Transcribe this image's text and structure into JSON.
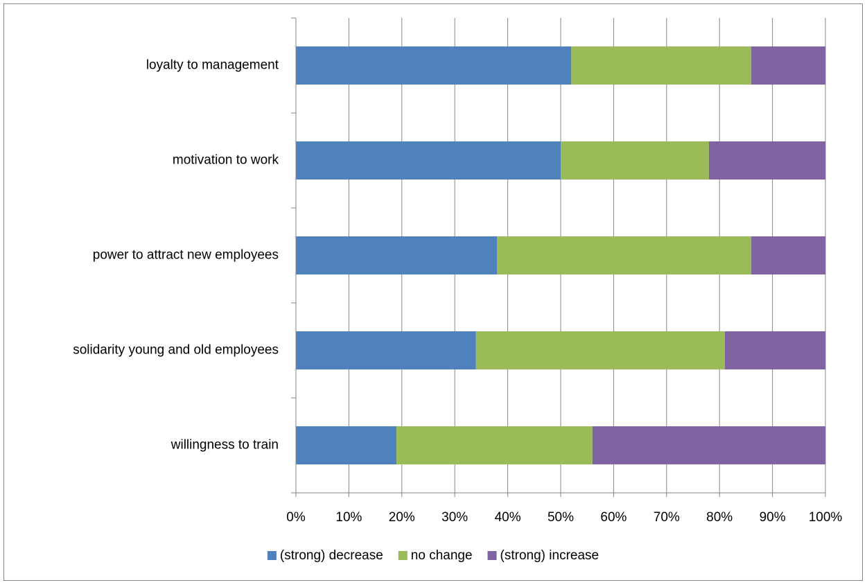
{
  "chart_data": {
    "type": "stacked-bar-horizontal",
    "categories": [
      "loyalty to management",
      "motivation to work",
      "power to attract new employees",
      "solidarity young and old employees",
      "willingness to train"
    ],
    "series": [
      {
        "name": "(strong) decrease",
        "color": "#4f81bd",
        "values": [
          52,
          50,
          38,
          34,
          19
        ]
      },
      {
        "name": "no change",
        "color": "#9bbb59",
        "values": [
          34,
          28,
          48,
          47,
          37
        ]
      },
      {
        "name": "(strong) increase",
        "color": "#8064a2",
        "values": [
          14,
          22,
          14,
          19,
          44
        ]
      }
    ],
    "xlim": [
      0,
      100
    ],
    "xticks": [
      {
        "value": 0,
        "label": "0%"
      },
      {
        "value": 10,
        "label": "10%"
      },
      {
        "value": 20,
        "label": "20%"
      },
      {
        "value": 30,
        "label": "30%"
      },
      {
        "value": 40,
        "label": "40%"
      },
      {
        "value": 50,
        "label": "50%"
      },
      {
        "value": 60,
        "label": "60%"
      },
      {
        "value": 70,
        "label": "70%"
      },
      {
        "value": 80,
        "label": "80%"
      },
      {
        "value": 90,
        "label": "90%"
      },
      {
        "value": 100,
        "label": "100%"
      }
    ],
    "grid": true,
    "legend": "bottom"
  }
}
